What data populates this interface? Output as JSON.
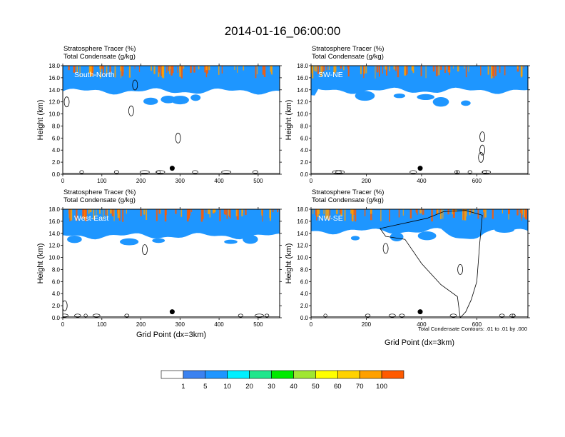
{
  "title": "2014-01-16_06:00:00",
  "colors": [
    "#ffffff",
    "#3b82f0",
    "#1e96ff",
    "#00f0ff",
    "#1ee68c",
    "#00ea00",
    "#a0e632",
    "#ffff00",
    "#ffd200",
    "#ffa000",
    "#ff5a00",
    "#ff0000"
  ],
  "colorbar": {
    "labels": [
      "1",
      "5",
      "10",
      "20",
      "30",
      "40",
      "50",
      "60",
      "70",
      "100"
    ]
  },
  "chart_data": [
    {
      "type": "heatmap",
      "panel_label": "South-North",
      "field_label_1": "Stratosphere Tracer   (%)",
      "field_label_2": "Total Condensate   (g/kg)",
      "ylabel": "Height (km)",
      "xlabel": "",
      "xlim": [
        0,
        555
      ],
      "xticks": [
        "0",
        "100",
        "200",
        "300",
        "400",
        "500"
      ],
      "ylim": [
        0,
        18
      ],
      "yticks": [
        "0.0",
        "2.0",
        "4.0",
        "6.0",
        "8.0",
        "10.0",
        "12.0",
        "14.0",
        "16.0",
        "18.0"
      ],
      "marker": {
        "x": 280,
        "y": 1.0
      },
      "tropopause_km": 14.2,
      "blue_cloud_blobs": [
        [
          270,
          12.4
        ],
        [
          340,
          12.7
        ],
        [
          300,
          12.3
        ],
        [
          225,
          12.1
        ]
      ],
      "contour_lines": [
        [
          10,
          12.0
        ],
        [
          175,
          10.5
        ],
        [
          295,
          6.0
        ],
        [
          185,
          14.8
        ]
      ]
    },
    {
      "type": "heatmap",
      "panel_label": "SW-NE",
      "field_label_1": "Stratosphere Tracer   (%)",
      "field_label_2": "Total Condensate   (g/kg)",
      "ylabel": "Height (km)",
      "xlabel": "",
      "xlim": [
        0,
        785
      ],
      "xticks": [
        "0",
        "200",
        "400",
        "600"
      ],
      "ylim": [
        0,
        18
      ],
      "yticks": [
        "0.0",
        "2.0",
        "4.0",
        "6.0",
        "8.0",
        "10.0",
        "12.0",
        "14.0",
        "16.0",
        "18.0"
      ],
      "marker": {
        "x": 395,
        "y": 1.0
      },
      "tropopause_km": 14.3,
      "blue_cloud_blobs": [
        [
          195,
          13.0
        ],
        [
          320,
          13.0
        ],
        [
          415,
          12.8
        ],
        [
          470,
          12.0
        ],
        [
          560,
          11.8
        ]
      ],
      "contour_lines": [
        [
          620,
          6.2
        ],
        [
          615,
          2.8
        ],
        [
          620,
          4.0
        ]
      ]
    },
    {
      "type": "heatmap",
      "panel_label": "West-East",
      "field_label_1": "Stratosphere Tracer   (%)",
      "field_label_2": "Total Condensate   (g/kg)",
      "ylabel": "Height (km)",
      "xlabel": "Grid Point (dx=3km)",
      "xlim": [
        0,
        555
      ],
      "xticks": [
        "0",
        "100",
        "200",
        "300",
        "400",
        "500"
      ],
      "ylim": [
        0,
        18
      ],
      "yticks": [
        "0.0",
        "2.0",
        "4.0",
        "6.0",
        "8.0",
        "10.0",
        "12.0",
        "14.0",
        "16.0",
        "18.0"
      ],
      "marker": {
        "x": 280,
        "y": 1.0
      },
      "tropopause_km": 14.0,
      "blue_cloud_blobs": [
        [
          30,
          13.0
        ],
        [
          170,
          12.6
        ],
        [
          245,
          12.8
        ],
        [
          430,
          12.6
        ],
        [
          480,
          13.0
        ]
      ],
      "contour_lines": [
        [
          210,
          11.3
        ],
        [
          5,
          2.0
        ]
      ]
    },
    {
      "type": "heatmap",
      "panel_label": "NW-SE",
      "field_label_1": "Stratosphere Tracer   (%)",
      "field_label_2": "Total Condensate   (g/kg)",
      "ylabel": "Height (km)",
      "xlabel": "Grid Point (dx=3km)",
      "xlim": [
        0,
        785
      ],
      "xticks": [
        "0",
        "200",
        "400",
        "600"
      ],
      "ylim": [
        0,
        18
      ],
      "yticks": [
        "0.0",
        "2.0",
        "4.0",
        "6.0",
        "8.0",
        "10.0",
        "12.0",
        "14.0",
        "16.0",
        "18.0"
      ],
      "marker": {
        "x": 395,
        "y": 1.0
      },
      "tropopause_km": 14.8,
      "blue_cloud_blobs": [
        [
          160,
          13.2
        ],
        [
          310,
          13.4
        ],
        [
          420,
          13.6
        ],
        [
          520,
          14.4
        ],
        [
          700,
          14.6
        ]
      ],
      "contour_lines": [
        [
          540,
          8.0
        ],
        [
          270,
          11.5
        ]
      ],
      "note": "Total Condensate Contours: .01 to .01 by .000"
    }
  ]
}
